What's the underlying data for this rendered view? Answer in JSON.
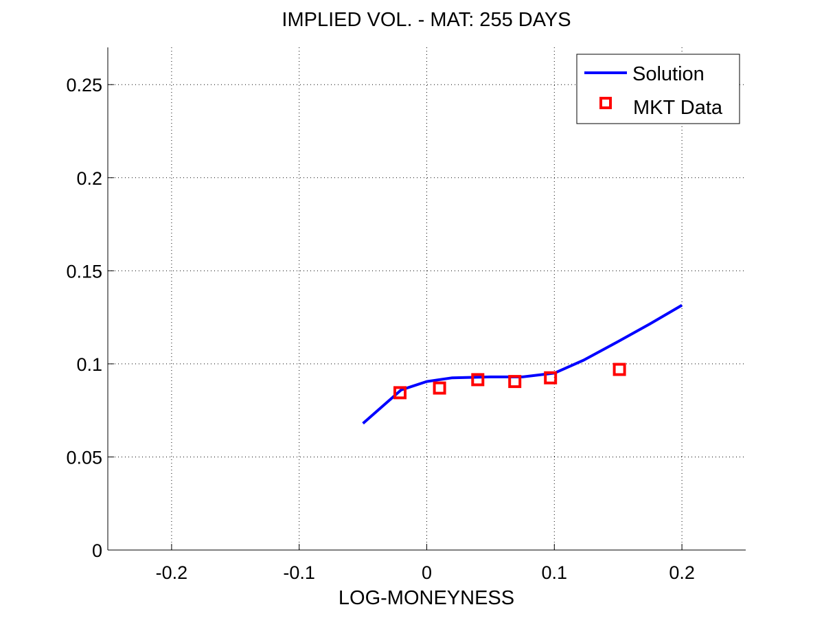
{
  "chart_data": {
    "type": "line",
    "title": "IMPLIED VOL. - MAT: 255 DAYS",
    "xlabel": "LOG-MONEYNESS",
    "ylabel": "",
    "xlim": [
      -0.25,
      0.25
    ],
    "ylim": [
      0,
      0.27
    ],
    "xticks": [
      -0.2,
      -0.1,
      0,
      0.1,
      0.2
    ],
    "yticks": [
      0,
      0.05,
      0.1,
      0.15,
      0.2,
      0.25
    ],
    "xtick_labels": [
      "-0.2",
      "-0.1",
      "0",
      "0.1",
      "0.2"
    ],
    "ytick_labels": [
      "0",
      "0.05",
      "0.1",
      "0.15",
      "0.2",
      "0.25"
    ],
    "grid": true,
    "legend_position": "top-right",
    "series": [
      {
        "name": "Solution",
        "kind": "line",
        "color": "#0000ff",
        "x": [
          -0.05,
          -0.02,
          0.0,
          0.02,
          0.05,
          0.075,
          0.1,
          0.123,
          0.15,
          0.175,
          0.2
        ],
        "y": [
          0.068,
          0.086,
          0.0905,
          0.0925,
          0.093,
          0.093,
          0.095,
          0.102,
          0.112,
          0.1215,
          0.1315
        ]
      },
      {
        "name": "MKT Data",
        "kind": "scatter",
        "marker": "square",
        "color": "#ff0000",
        "x": [
          -0.021,
          0.01,
          0.04,
          0.069,
          0.097,
          0.151
        ],
        "y": [
          0.0845,
          0.087,
          0.0915,
          0.0905,
          0.0925,
          0.097
        ]
      }
    ]
  }
}
